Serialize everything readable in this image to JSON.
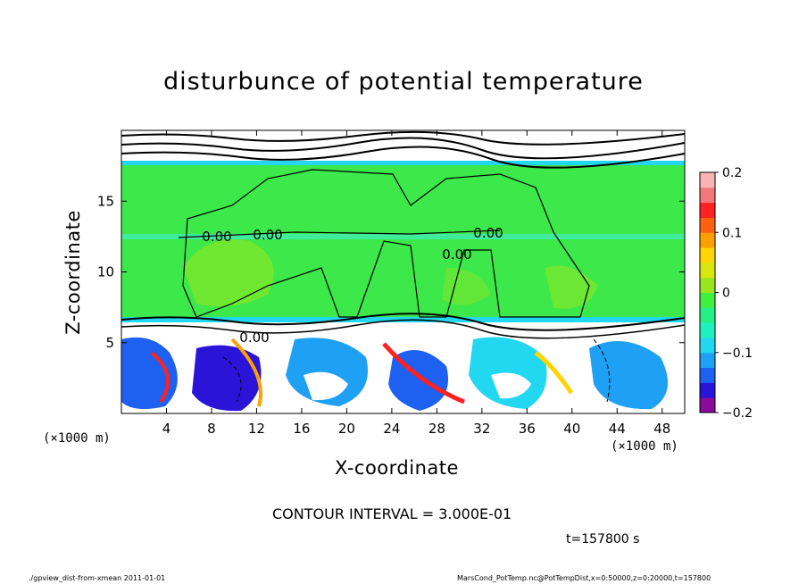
{
  "chart_data": {
    "type": "heatmap",
    "title": "disturbunce of potential temperature",
    "xlabel": "X-coordinate",
    "ylabel": "Z-coordinate",
    "x_unit": "(×1000 m)",
    "z_unit": "(×1000 m)",
    "xlim": [
      0,
      50
    ],
    "ylim": [
      0,
      20
    ],
    "x_ticks": [
      4,
      8,
      12,
      16,
      20,
      24,
      28,
      32,
      36,
      40,
      44,
      48
    ],
    "y_ticks": [
      5,
      10,
      15
    ],
    "colorbar": {
      "range": [
        -0.2,
        0.2
      ],
      "tick_values": [
        0.2,
        0.1,
        0,
        -0.1,
        -0.2
      ],
      "tick_labels": [
        "0.2",
        "0.1",
        "0",
        "−0.1",
        "−0.2"
      ],
      "colors": [
        "#8a0a9a",
        "#2a14d8",
        "#1e60f0",
        "#1ea0f5",
        "#22d8f0",
        "#20f0c0",
        "#25f085",
        "#40f040",
        "#9ae61e",
        "#d8e60e",
        "#ffd400",
        "#ffa000",
        "#ff6010",
        "#ff2020",
        "#f07878",
        "#f8b4b4"
      ]
    },
    "contour_labels": [
      "0.00",
      "0.00",
      "0.00",
      "0.00",
      "0.00"
    ],
    "contour_interval_text": "CONTOUR INTERVAL = 3.000E-01",
    "time_text": "t=157800 s"
  },
  "footer": {
    "left": "./gpview_dist-from-xmean  2011-01-01",
    "right": "MarsCond_PotTemp.nc@PotTempDist,x=0:50000,z=0:20000,t=157800"
  }
}
